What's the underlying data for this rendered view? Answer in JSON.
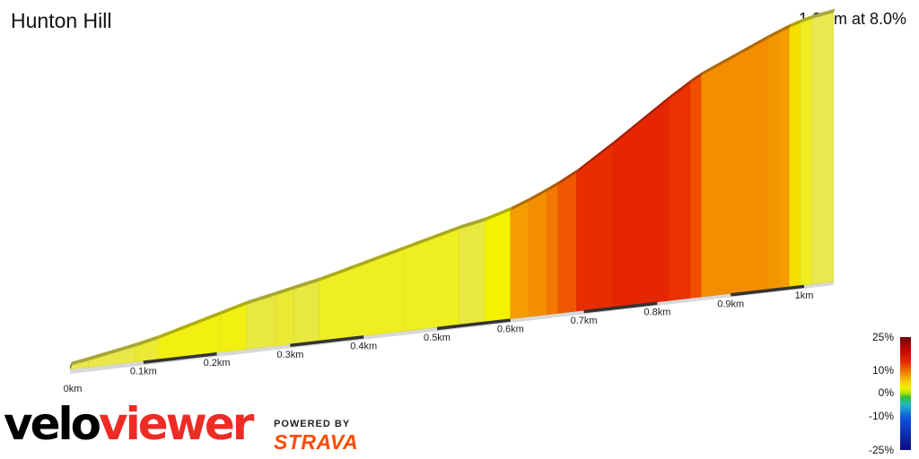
{
  "segment": {
    "name": "Hunton Hill",
    "summary": "1.0 km at 8.0%"
  },
  "branding": {
    "velo": "velo",
    "viewer": "viewer",
    "powered_by": "POWERED BY",
    "strava": "STRAVA"
  },
  "chart_data": {
    "type": "area",
    "title": "Hunton Hill",
    "subtitle": "1.0 km at 8.0%",
    "xlabel": "",
    "ylabel": "",
    "x_unit": "km",
    "x_ticks": [
      "0km",
      "0.1km",
      "0.2km",
      "0.3km",
      "0.4km",
      "0.5km",
      "0.6km",
      "0.7km",
      "0.8km",
      "0.9km",
      "1km"
    ],
    "xlim": [
      0,
      1.04
    ],
    "gradient_scale": {
      "labels": [
        "25%",
        "10%",
        "0%",
        "-10%",
        "-25%"
      ],
      "values": [
        25,
        10,
        0,
        -10,
        -25
      ]
    },
    "segments": [
      {
        "start": 0.0,
        "end": 0.025,
        "gradient": 4.5
      },
      {
        "start": 0.025,
        "end": 0.09,
        "gradient": 5.0
      },
      {
        "start": 0.09,
        "end": 0.12,
        "gradient": 6.0
      },
      {
        "start": 0.12,
        "end": 0.205,
        "gradient": 7.5
      },
      {
        "start": 0.205,
        "end": 0.24,
        "gradient": 7.5
      },
      {
        "start": 0.24,
        "end": 0.28,
        "gradient": 5.5
      },
      {
        "start": 0.28,
        "end": 0.305,
        "gradient": 6.0
      },
      {
        "start": 0.305,
        "end": 0.34,
        "gradient": 5.5
      },
      {
        "start": 0.34,
        "end": 0.455,
        "gradient": 7.0
      },
      {
        "start": 0.455,
        "end": 0.53,
        "gradient": 7.0
      },
      {
        "start": 0.53,
        "end": 0.565,
        "gradient": 5.5
      },
      {
        "start": 0.565,
        "end": 0.6,
        "gradient": 8.0
      },
      {
        "start": 0.6,
        "end": 0.625,
        "gradient": 10.5
      },
      {
        "start": 0.625,
        "end": 0.65,
        "gradient": 12.0
      },
      {
        "start": 0.65,
        "end": 0.665,
        "gradient": 13.0
      },
      {
        "start": 0.665,
        "end": 0.69,
        "gradient": 14.5
      },
      {
        "start": 0.69,
        "end": 0.74,
        "gradient": 18.0
      },
      {
        "start": 0.74,
        "end": 0.815,
        "gradient": 19.0
      },
      {
        "start": 0.815,
        "end": 0.845,
        "gradient": 17.5
      },
      {
        "start": 0.845,
        "end": 0.86,
        "gradient": 15.0
      },
      {
        "start": 0.86,
        "end": 0.95,
        "gradient": 12.0
      },
      {
        "start": 0.95,
        "end": 0.965,
        "gradient": 11.0
      },
      {
        "start": 0.965,
        "end": 0.98,
        "gradient": 10.5
      },
      {
        "start": 0.98,
        "end": 0.995,
        "gradient": 8.5
      },
      {
        "start": 0.995,
        "end": 1.01,
        "gradient": 7.0
      },
      {
        "start": 1.01,
        "end": 1.04,
        "gradient": 4.5
      }
    ]
  }
}
